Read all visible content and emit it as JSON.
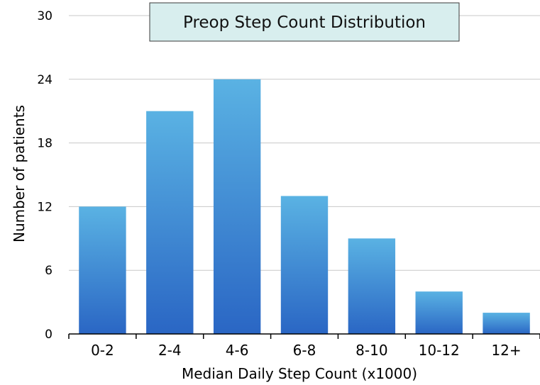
{
  "chart_data": {
    "type": "bar",
    "title": "Preop Step Count Distribution",
    "xlabel": "Median Daily Step Count (x1000)",
    "ylabel": "Number of patients",
    "categories": [
      "0-2",
      "2-4",
      "4-6",
      "6-8",
      "8-10",
      "10-12",
      "12+"
    ],
    "values": [
      12,
      21,
      24,
      13,
      9,
      4,
      2
    ],
    "ylim": [
      0,
      30
    ],
    "yticks": [
      "0",
      "6",
      "12",
      "18",
      "24",
      "30"
    ],
    "grid": true,
    "legend": "none",
    "colors": {
      "bar_top": "#5ab2e3",
      "bar_bottom": "#2a66c4",
      "grid": "#c8c8c8",
      "title_bg": "#d8eeee",
      "title_border": "#3a3a3a"
    }
  }
}
